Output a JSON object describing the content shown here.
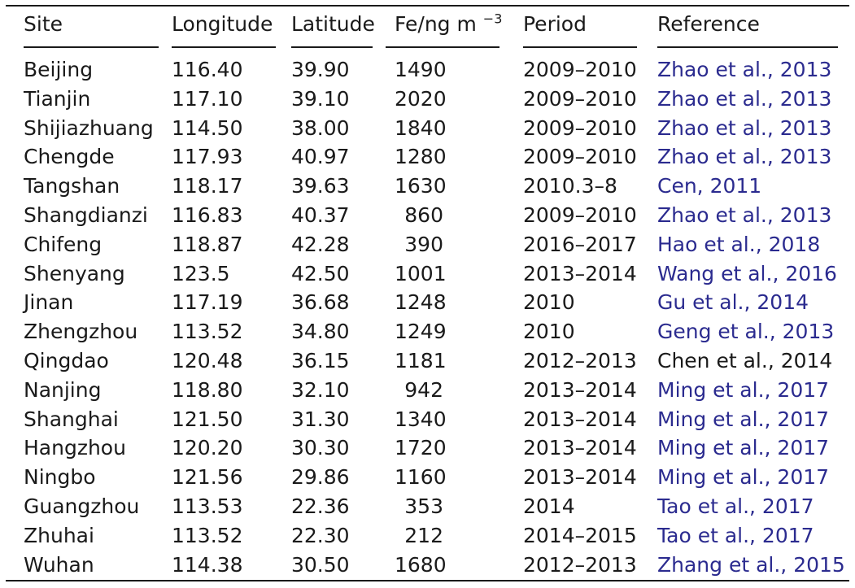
{
  "header": {
    "site": "Site",
    "longitude": "Longitude",
    "latitude": "Latitude",
    "fe_base": "Fe/ng m",
    "fe_sup": "−3",
    "period": "Period",
    "reference": "Reference"
  },
  "rows": [
    {
      "site": "Beijing",
      "lon": "116.40",
      "lat": "39.90",
      "fe": "1490",
      "period": "2009–2010",
      "ref": "Zhao et al., 2013",
      "linked": true
    },
    {
      "site": "Tianjin",
      "lon": "117.10",
      "lat": "39.10",
      "fe": "2020",
      "period": "2009–2010",
      "ref": "Zhao et al., 2013",
      "linked": true
    },
    {
      "site": "Shijiazhuang",
      "lon": "114.50",
      "lat": "38.00",
      "fe": "1840",
      "period": "2009–2010",
      "ref": "Zhao et al., 2013",
      "linked": true
    },
    {
      "site": "Chengde",
      "lon": "117.93",
      "lat": "40.97",
      "fe": "1280",
      "period": "2009–2010",
      "ref": "Zhao et al., 2013",
      "linked": true
    },
    {
      "site": "Tangshan",
      "lon": "118.17",
      "lat": "39.63",
      "fe": "1630",
      "period": "2010.3–8",
      "ref": "Cen, 2011",
      "linked": true
    },
    {
      "site": "Shangdianzi",
      "lon": "116.83",
      "lat": "40.37",
      "fe": "860",
      "period": "2009–2010",
      "ref": "Zhao et al., 2013",
      "linked": true
    },
    {
      "site": "Chifeng",
      "lon": "118.87",
      "lat": "42.28",
      "fe": "390",
      "period": "2016–2017",
      "ref": "Hao et al., 2018",
      "linked": true
    },
    {
      "site": "Shenyang",
      "lon": "123.5",
      "lat": "42.50",
      "fe": "1001",
      "period": "2013–2014",
      "ref": "Wang et al., 2016",
      "linked": true
    },
    {
      "site": "Jinan",
      "lon": "117.19",
      "lat": "36.68",
      "fe": "1248",
      "period": "2010",
      "ref": "Gu et al., 2014",
      "linked": true
    },
    {
      "site": "Zhengzhou",
      "lon": "113.52",
      "lat": "34.80",
      "fe": "1249",
      "period": "2010",
      "ref": "Geng et al., 2013",
      "linked": true
    },
    {
      "site": "Qingdao",
      "lon": "120.48",
      "lat": "36.15",
      "fe": "1181",
      "period": "2012–2013",
      "ref": "Chen et al., 2014",
      "linked": false
    },
    {
      "site": "Nanjing",
      "lon": "118.80",
      "lat": "32.10",
      "fe": "942",
      "period": "2013–2014",
      "ref": "Ming et al., 2017",
      "linked": true
    },
    {
      "site": "Shanghai",
      "lon": "121.50",
      "lat": "31.30",
      "fe": "1340",
      "period": "2013–2014",
      "ref": "Ming et al., 2017",
      "linked": true
    },
    {
      "site": "Hangzhou",
      "lon": "120.20",
      "lat": "30.30",
      "fe": "1720",
      "period": "2013–2014",
      "ref": "Ming et al., 2017",
      "linked": true
    },
    {
      "site": "Ningbo",
      "lon": "121.56",
      "lat": "29.86",
      "fe": "1160",
      "period": "2013–2014",
      "ref": "Ming et al., 2017",
      "linked": true
    },
    {
      "site": "Guangzhou",
      "lon": "113.53",
      "lat": "22.36",
      "fe": "353",
      "period": "2014",
      "ref": "Tao et al., 2017",
      "linked": true
    },
    {
      "site": "Zhuhai",
      "lon": "113.52",
      "lat": "22.30",
      "fe": "212",
      "period": "2014–2015",
      "ref": "Tao et al., 2017",
      "linked": true
    },
    {
      "site": "Wuhan",
      "lon": "114.38",
      "lat": "30.50",
      "fe": "1680",
      "period": "2012–2013",
      "ref": "Zhang et al., 2015",
      "linked": true
    }
  ],
  "colors": {
    "text": "#1a1a1a",
    "link": "#2b2b8f",
    "background": "#ffffff"
  }
}
